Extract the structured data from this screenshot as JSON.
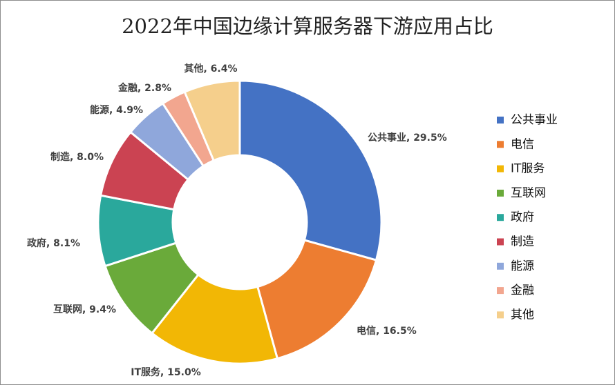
{
  "chart_data": {
    "type": "donut",
    "title": "2022年中国边缘计算服务器下游应用占比",
    "categories": [
      "公共事业",
      "电信",
      "IT服务",
      "互联网",
      "政府",
      "制造",
      "能源",
      "金融",
      "其他"
    ],
    "values": [
      29.5,
      16.5,
      15.0,
      9.4,
      8.1,
      8.0,
      4.9,
      2.8,
      6.4
    ],
    "value_labels": [
      "公共事业, 29.5%",
      "电信, 16.5%",
      "IT服务, 15.0%",
      "互联网, 9.4%",
      "政府, 8.1%",
      "制造, 8.0%",
      "能源, 4.9%",
      "金融, 2.8%",
      "其他, 6.4%"
    ],
    "colors": [
      "#4472c4",
      "#ed7d31",
      "#f2b705",
      "#6aaa3a",
      "#2aa89c",
      "#cb4352",
      "#8fa7db",
      "#f2a68f",
      "#f5cf8c"
    ],
    "legend": "right"
  }
}
